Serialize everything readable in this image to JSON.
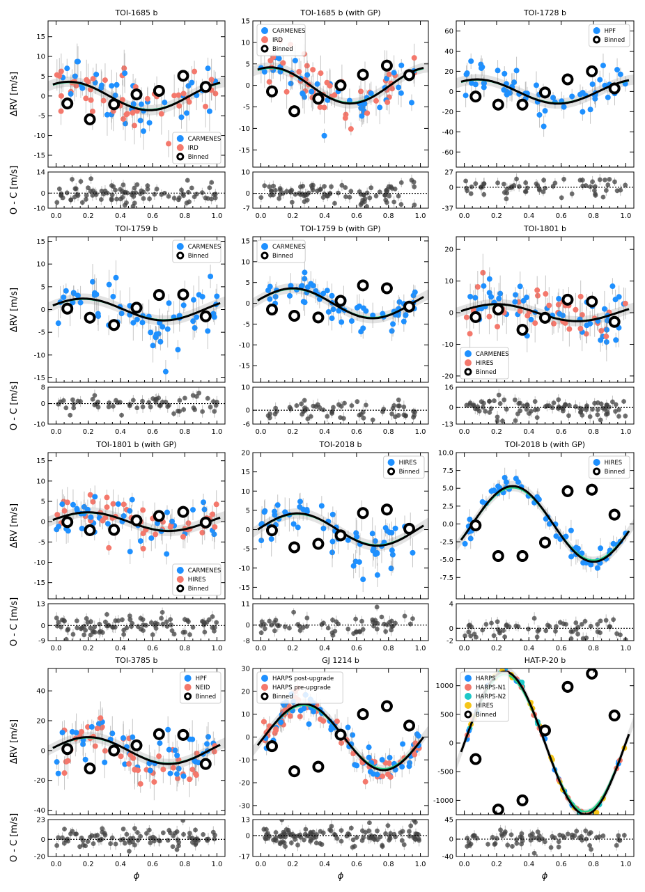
{
  "figure": {
    "ylabel_top": "ΔRV [m/s]",
    "ylabel_bottom": "O - C [m/s]",
    "xlabel": "ϕ",
    "x_ticks": [
      "0.0",
      "0.2",
      "0.4",
      "0.6",
      "0.8",
      "1.0"
    ],
    "colors": {
      "CARMENES": "#1e90ff",
      "IRD": "#f4786c",
      "HPF": "#1e90ff",
      "HIRES_blue": "#1e90ff",
      "HIRES_salmon": "#f4786c",
      "NEID": "#f4786c",
      "HARPS": "#1e90ff",
      "HARPS_N1": "#f4786c",
      "HARPS_N2": "#1ec8c8",
      "HIRES_yellow": "#f5c518",
      "model": "#000000",
      "model_alt": "#2ad28a",
      "residual": "#404040"
    }
  },
  "chart_data": [
    {
      "title": "TOI-1685 b",
      "type": "scatter",
      "ylim": [
        -18,
        19
      ],
      "yticks": [
        "-15",
        "-10",
        "-5",
        "0",
        "5",
        "10",
        "15"
      ],
      "rlim": [
        -10,
        14
      ],
      "rticks": [
        "14",
        "0",
        "-10"
      ],
      "K": 3.6,
      "phase0": 0.33,
      "legend": "bottom-right",
      "series": [
        {
          "name": "CARMENES",
          "color": "#1e90ff"
        },
        {
          "name": "IRD",
          "color": "#f4786c"
        }
      ],
      "binned": {
        "x": [
          0.07,
          0.21,
          0.36,
          0.5,
          0.64,
          0.79,
          0.93
        ],
        "y": [
          -1.9,
          -5.9,
          -2.1,
          0.4,
          1.3,
          5.1,
          2.3
        ]
      },
      "scatter_sd": 4.5
    },
    {
      "title": "TOI-1685 b (with GP)",
      "type": "scatter",
      "ylim": [
        -19,
        15
      ],
      "yticks": [
        "-15",
        "-10",
        "-5",
        "0",
        "5",
        "10",
        "15"
      ],
      "rlim": [
        -7,
        10
      ],
      "rticks": [
        "10",
        "0",
        "-7"
      ],
      "K": 4.2,
      "phase0": 0.31,
      "legend": "top-left",
      "series": [
        {
          "name": "CARMENES",
          "color": "#1e90ff"
        },
        {
          "name": "IRD",
          "color": "#f4786c"
        }
      ],
      "binned": {
        "x": [
          0.07,
          0.21,
          0.36,
          0.5,
          0.64,
          0.79,
          0.93
        ],
        "y": [
          -1.4,
          -6.0,
          -3.1,
          0.0,
          2.5,
          4.6,
          2.4
        ]
      },
      "scatter_sd": 3.5
    },
    {
      "title": "TOI-1728 b",
      "type": "scatter",
      "ylim": [
        -75,
        70
      ],
      "yticks": [
        "-60",
        "-40",
        "-20",
        "0",
        "20",
        "40",
        "60"
      ],
      "rlim": [
        -37,
        27
      ],
      "rticks": [
        "27",
        "0",
        "-37"
      ],
      "K": 12,
      "phase0": 0.33,
      "legend": "top-right",
      "series": [
        {
          "name": "HPF",
          "color": "#1e90ff"
        }
      ],
      "binned": {
        "x": [
          0.07,
          0.21,
          0.36,
          0.5,
          0.64,
          0.79,
          0.93
        ],
        "y": [
          -5,
          -13,
          -13,
          -1,
          12,
          20,
          3
        ]
      },
      "scatter_sd": 12
    },
    {
      "title": "TOI-1759 b",
      "type": "scatter",
      "ylim": [
        -16,
        16
      ],
      "yticks": [
        "-15",
        "-10",
        "-5",
        "0",
        "5",
        "10",
        "15"
      ],
      "rlim": [
        -10,
        8
      ],
      "rticks": [
        "8",
        "0",
        "-10"
      ],
      "K": 2.4,
      "phase0": 0.42,
      "legend": "top-right",
      "series": [
        {
          "name": "CARMENES",
          "color": "#1e90ff"
        }
      ],
      "binned": {
        "x": [
          0.07,
          0.21,
          0.36,
          0.5,
          0.64,
          0.79,
          0.93
        ],
        "y": [
          0.2,
          -1.8,
          -3.4,
          0.4,
          3.2,
          3.3,
          -1.5
        ]
      },
      "scatter_sd": 3.5
    },
    {
      "title": "TOI-1759 b (with GP)",
      "type": "scatter",
      "ylim": [
        -19,
        16
      ],
      "yticks": [
        "-15",
        "-10",
        "-5",
        "0",
        "5",
        "10",
        "15"
      ],
      "rlim": [
        -6,
        10
      ],
      "rticks": [
        "10",
        "0",
        "-6"
      ],
      "K": 3.6,
      "phase0": 0.45,
      "legend": "top-left",
      "series": [
        {
          "name": "CARMENES",
          "color": "#1e90ff"
        }
      ],
      "binned": {
        "x": [
          0.07,
          0.21,
          0.36,
          0.5,
          0.64,
          0.79,
          0.93
        ],
        "y": [
          -1.5,
          -3.0,
          -3.4,
          0.6,
          4.3,
          3.6,
          -0.8
        ]
      },
      "scatter_sd": 2.8
    },
    {
      "title": "TOI-1801 b",
      "type": "scatter",
      "ylim": [
        -22,
        24
      ],
      "yticks": [
        "-20",
        "-10",
        "0",
        "10",
        "20"
      ],
      "rlim": [
        -13,
        16
      ],
      "rticks": [
        "16",
        "0",
        "-13"
      ],
      "K": 2.7,
      "phase0": 0.45,
      "legend": "bottom-left",
      "series": [
        {
          "name": "CARMENES",
          "color": "#1e90ff"
        },
        {
          "name": "HIRES",
          "color": "#f4786c"
        }
      ],
      "binned": {
        "x": [
          0.07,
          0.21,
          0.36,
          0.5,
          0.64,
          0.79,
          0.93
        ],
        "y": [
          -1.4,
          1.0,
          -5.4,
          -1.6,
          4.1,
          3.5,
          -2.9
        ]
      },
      "scatter_sd": 5.5
    },
    {
      "title": "TOI-1801 b (with GP)",
      "type": "scatter",
      "ylim": [
        -19,
        17
      ],
      "yticks": [
        "-15",
        "-10",
        "-5",
        "0",
        "5",
        "10",
        "15"
      ],
      "rlim": [
        -9,
        13
      ],
      "rticks": [
        "13",
        "0",
        "-9"
      ],
      "K": 2.3,
      "phase0": 0.45,
      "legend": "bottom-right",
      "series": [
        {
          "name": "CARMENES",
          "color": "#1e90ff"
        },
        {
          "name": "HIRES",
          "color": "#f4786c"
        }
      ],
      "binned": {
        "x": [
          0.07,
          0.21,
          0.36,
          0.5,
          0.64,
          0.79,
          0.93
        ],
        "y": [
          -0.1,
          -2.1,
          -2.0,
          0.3,
          1.4,
          2.4,
          -0.2
        ]
      },
      "scatter_sd": 3.2
    },
    {
      "title": "TOI-2018 b",
      "type": "scatter",
      "ylim": [
        -18,
        20
      ],
      "yticks": [
        "-15",
        "-10",
        "-5",
        "0",
        "5",
        "10",
        "15",
        "20"
      ],
      "rlim": [
        -8,
        11
      ],
      "rticks": [
        "11",
        "0",
        "-8"
      ],
      "K": 4.2,
      "phase0": 0.48,
      "legend": "top-right",
      "series": [
        {
          "name": "HIRES",
          "color": "#1e90ff"
        }
      ],
      "binned": {
        "x": [
          0.07,
          0.21,
          0.36,
          0.5,
          0.64,
          0.79,
          0.93
        ],
        "y": [
          -0.2,
          -4.6,
          -3.7,
          -1.5,
          4.3,
          5.2,
          0.2
        ]
      },
      "scatter_sd": 4.0
    },
    {
      "title": "TOI-2018 b (with GP)",
      "type": "scatter",
      "ylim": [
        -10.5,
        10
      ],
      "yticks": [
        "-7.5",
        "-5.0",
        "-2.5",
        "0.0",
        "2.5",
        "5.0",
        "7.5",
        "10.0"
      ],
      "rlim": [
        -2,
        4
      ],
      "rticks": [
        "4",
        "0",
        "-2"
      ],
      "K": 5.3,
      "phase0": 0.55,
      "legend": "top-right",
      "series": [
        {
          "name": "HIRES",
          "color": "#1e90ff"
        }
      ],
      "binned": {
        "x": [
          0.07,
          0.21,
          0.36,
          0.5,
          0.64,
          0.79,
          0.93
        ],
        "y": [
          -0.2,
          -4.5,
          -4.5,
          -2.6,
          4.6,
          4.8,
          1.3
        ]
      },
      "scatter_sd": 1.3
    },
    {
      "title": "TOI-3785 b",
      "type": "scatter",
      "ylim": [
        -43,
        55
      ],
      "yticks": [
        "-40",
        "-20",
        "0",
        "20",
        "40"
      ],
      "rlim": [
        -20,
        23
      ],
      "rticks": [
        "23",
        "0",
        "-20"
      ],
      "K": 9,
      "phase0": 0.45,
      "legend": "top-right",
      "series": [
        {
          "name": "HPF",
          "color": "#1e90ff"
        },
        {
          "name": "NEID",
          "color": "#f4786c"
        }
      ],
      "binned": {
        "x": [
          0.07,
          0.21,
          0.36,
          0.5,
          0.64,
          0.79,
          0.93
        ],
        "y": [
          1,
          -12,
          0,
          3.5,
          11,
          10.5,
          -9
        ]
      },
      "scatter_sd": 11
    },
    {
      "title": "GJ 1214 b",
      "type": "scatter",
      "ylim": [
        -34,
        30
      ],
      "yticks": [
        "-30",
        "-20",
        "-10",
        "0",
        "10",
        "20",
        "30"
      ],
      "rlim": [
        -17,
        13
      ],
      "rticks": [
        "13",
        "0",
        "-17"
      ],
      "K": 14.5,
      "phase0": 0.52,
      "legend": "top-left",
      "series": [
        {
          "name": "HARPS post-upgrade",
          "color": "#1e90ff"
        },
        {
          "name": "HARPS pre-upgrade",
          "color": "#f4786c"
        }
      ],
      "binned": {
        "x": [
          0.07,
          0.21,
          0.36,
          0.5,
          0.64,
          0.79,
          0.93
        ],
        "y": [
          -4,
          -15,
          -13,
          1,
          10,
          13.5,
          5
        ]
      },
      "scatter_sd": 4.5
    },
    {
      "title": "HAT-P-20 b",
      "type": "scatter",
      "ylim": [
        -1250,
        1300
      ],
      "yticks": [
        "-1000",
        "-500",
        "0",
        "500",
        "1000"
      ],
      "rlim": [
        -40,
        45
      ],
      "rticks": [
        "45",
        "0",
        "-40"
      ],
      "K": 1245,
      "phase0": 0.5,
      "legend": "top-left",
      "series": [
        {
          "name": "HARPS",
          "color": "#1e90ff"
        },
        {
          "name": "HARPS-N1",
          "color": "#f4786c"
        },
        {
          "name": "HARPS-N2",
          "color": "#1ec8c8"
        },
        {
          "name": "HIRES",
          "color": "#f5c518"
        }
      ],
      "binned": {
        "x": [
          0.07,
          0.21,
          0.36,
          0.5,
          0.64,
          0.79,
          0.93
        ],
        "y": [
          -280,
          -1160,
          -1000,
          220,
          980,
          1210,
          480
        ]
      },
      "scatter_sd": 40
    }
  ]
}
